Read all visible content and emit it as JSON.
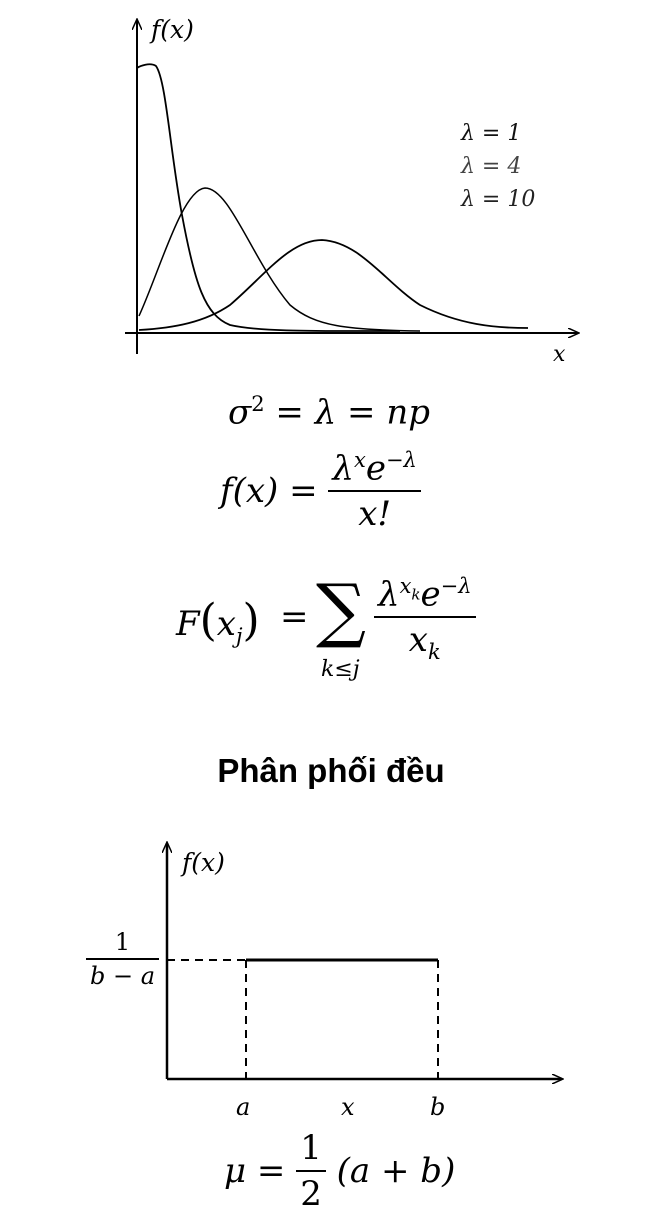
{
  "poisson": {
    "y_axis_label": "f(x)",
    "x_axis_label": "x",
    "legend": [
      "λ = 1",
      "λ = 4",
      "λ = 10"
    ]
  },
  "equations": {
    "variance_lhs": "σ",
    "variance_sup": "2",
    "variance_rest": " = λ = np",
    "pmf_lhs": "f(x) =",
    "pmf_num_base": "λ",
    "pmf_num_sup": "x",
    "pmf_num_e": "e",
    "pmf_num_e_sup": "−λ",
    "pmf_den": "x!",
    "cdf_lhs_F": "F",
    "cdf_lhs_x": "x",
    "cdf_lhs_sub": "j",
    "cdf_eq": "=",
    "cdf_sigma": "∑",
    "cdf_sigma_sub": "k≤j",
    "cdf_num_base": "λ",
    "cdf_num_sup": "x",
    "cdf_num_sup_sub": "k",
    "cdf_num_e": "e",
    "cdf_num_e_sup": "−λ",
    "cdf_den": "x",
    "cdf_den_sub": "k"
  },
  "section_title": "Phân phối đều",
  "uniform": {
    "y_axis_label": "f(x)",
    "height_num": "1",
    "height_den": "b − a",
    "x_labels": [
      "a",
      "x",
      "b"
    ]
  },
  "mean": {
    "lhs": "μ =",
    "num": "1",
    "den": "2",
    "rhs": "(a + b)"
  }
}
